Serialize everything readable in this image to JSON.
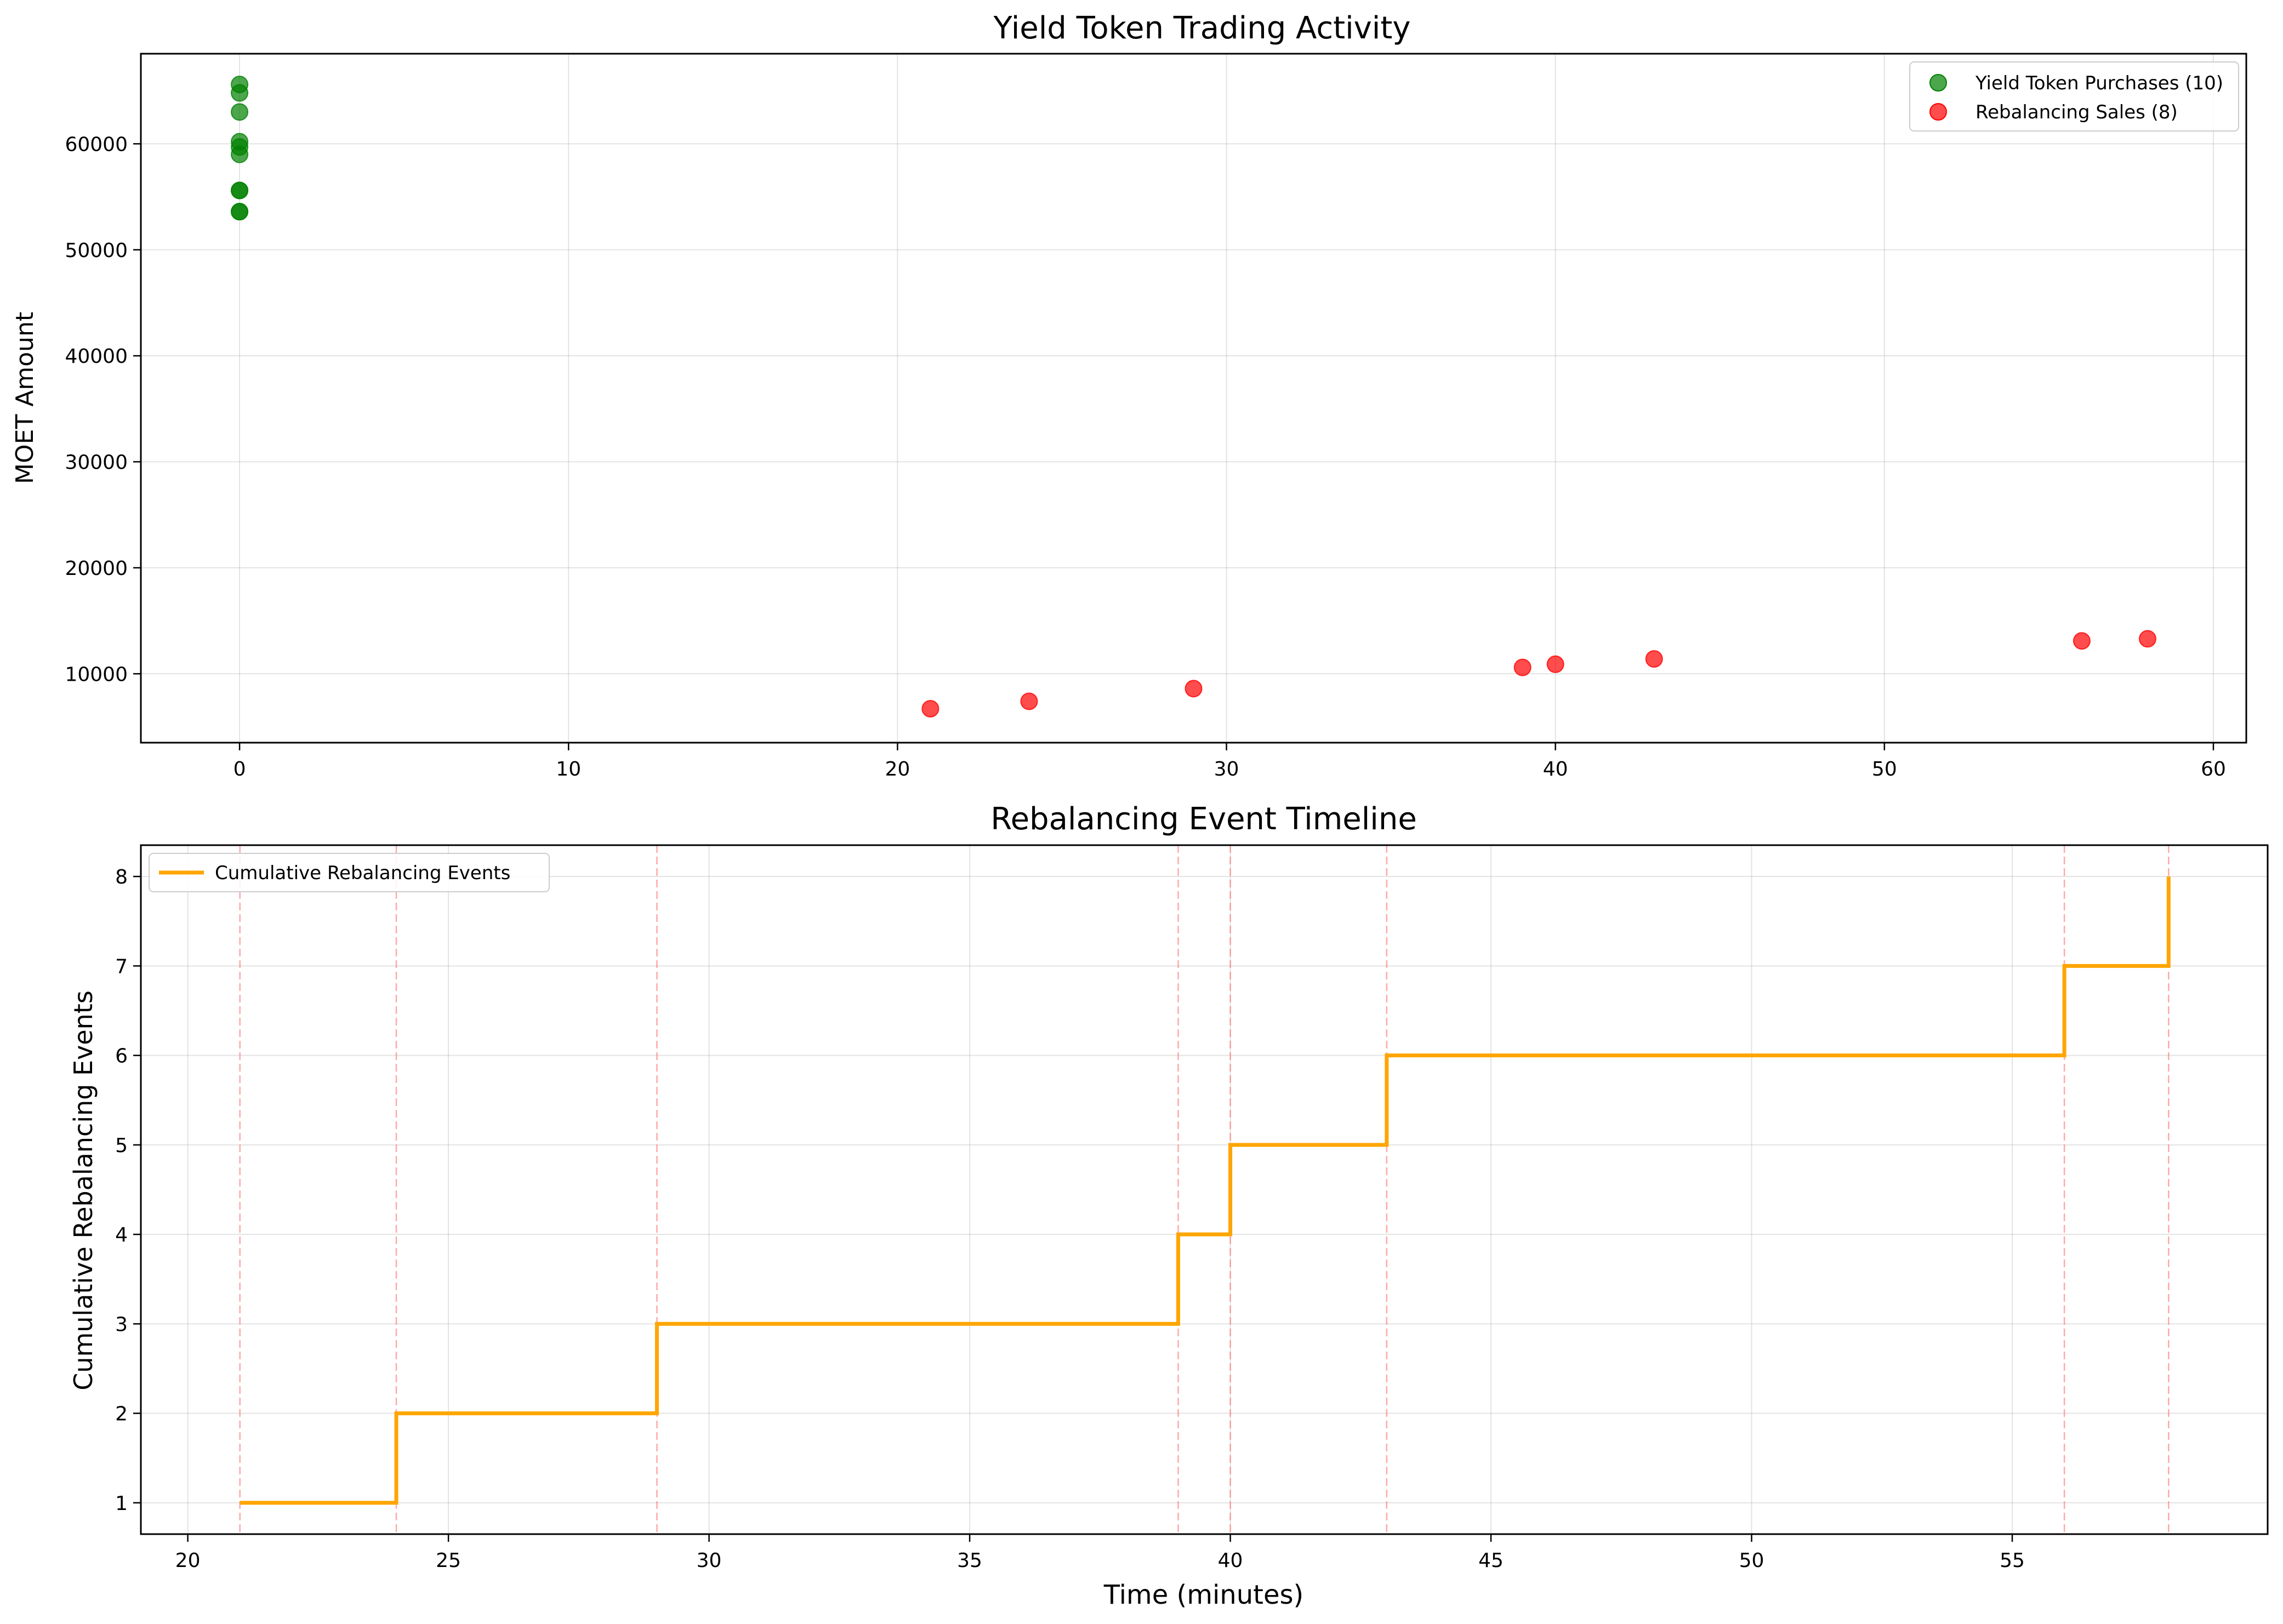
{
  "chart_data": [
    {
      "type": "scatter",
      "title": "Yield Token Trading Activity",
      "xlabel": "",
      "ylabel": "MOET Amount",
      "xlim": [
        -3,
        61
      ],
      "ylim": [
        3500,
        68500
      ],
      "xticks": [
        0,
        10,
        20,
        30,
        40,
        50,
        60
      ],
      "yticks": [
        10000,
        20000,
        30000,
        40000,
        50000,
        60000
      ],
      "grid": true,
      "legend_position": "upper right",
      "series": [
        {
          "name": "Yield Token Purchases (10)",
          "color": "#008000",
          "x": [
            0,
            0,
            0,
            0,
            0,
            0,
            0,
            0,
            0,
            0
          ],
          "y": [
            53600,
            53600,
            55600,
            55600,
            59000,
            59700,
            60200,
            63000,
            64800,
            65600
          ]
        },
        {
          "name": "Rebalancing Sales (8)",
          "color": "#ff0000",
          "x": [
            21,
            24,
            29,
            39,
            40,
            43,
            56,
            58
          ],
          "y": [
            6700,
            7400,
            8600,
            10600,
            10900,
            11400,
            13100,
            13300
          ]
        }
      ]
    },
    {
      "type": "line",
      "title": "Rebalancing Event Timeline",
      "xlabel": "Time (minutes)",
      "ylabel": "Cumulative Rebalancing Events",
      "xlim": [
        19.1,
        59.9
      ],
      "ylim": [
        0.65,
        8.35
      ],
      "xticks": [
        20,
        25,
        30,
        35,
        40,
        45,
        50,
        55
      ],
      "yticks": [
        1,
        2,
        3,
        4,
        5,
        6,
        7,
        8
      ],
      "grid": true,
      "legend_position": "upper left",
      "step": "post",
      "event_marker_color": "#ff6060",
      "series": [
        {
          "name": "Cumulative Rebalancing Events",
          "color": "#ffa500",
          "x": [
            21,
            24,
            29,
            39,
            40,
            43,
            56,
            58
          ],
          "y": [
            1,
            2,
            3,
            4,
            5,
            6,
            7,
            8
          ]
        }
      ],
      "event_lines": [
        21,
        24,
        29,
        39,
        40,
        43,
        56,
        58
      ]
    }
  ]
}
